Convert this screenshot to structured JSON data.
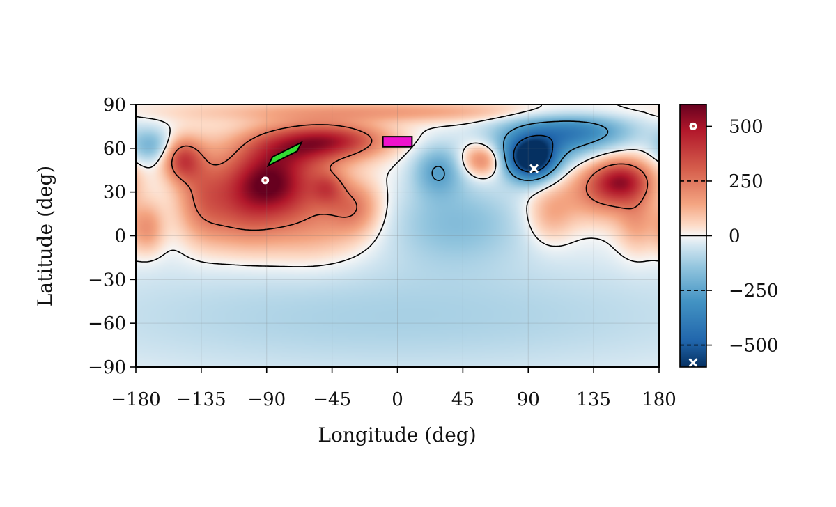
{
  "chart_data": {
    "type": "heatmap",
    "title": "",
    "xlabel": "Longitude (deg)",
    "ylabel": "Latitude (deg)",
    "xlim": [
      -180,
      180
    ],
    "ylim": [
      -90,
      90
    ],
    "xticks": [
      -180,
      -135,
      -90,
      -45,
      0,
      45,
      90,
      135,
      180
    ],
    "xtick_labels": [
      "−180",
      "−135",
      "−90",
      "−45",
      "0",
      "45",
      "90",
      "135",
      "180"
    ],
    "yticks": [
      90,
      60,
      30,
      0,
      -30,
      -60,
      -90
    ],
    "ytick_labels": [
      "90",
      "60",
      "30",
      "0",
      "−30",
      "−60",
      "−90"
    ],
    "grid": true,
    "colorbar": {
      "colormap": "RdBu_r",
      "range": [
        -600,
        600
      ],
      "ticks": [
        500,
        250,
        0,
        -250,
        -500
      ],
      "tick_labels": [
        "500",
        "250",
        "0",
        "−250",
        "−500"
      ],
      "contour_levels": [
        250,
        0,
        -250,
        -500
      ],
      "max_color": "#67001f",
      "min_color": "#053061"
    },
    "field_blobs": [
      {
        "lon": -88,
        "lat": 38,
        "value": 520,
        "spread": [
          22,
          16
        ]
      },
      {
        "lon": -65,
        "lat": 62,
        "value": 330,
        "spread": [
          28,
          10
        ]
      },
      {
        "lon": -40,
        "lat": 66,
        "value": 260,
        "spread": [
          25,
          8
        ]
      },
      {
        "lon": -148,
        "lat": 52,
        "value": 330,
        "spread": [
          9,
          10
        ]
      },
      {
        "lon": -135,
        "lat": 30,
        "value": 190,
        "spread": [
          12,
          22
        ]
      },
      {
        "lon": -110,
        "lat": 15,
        "value": 200,
        "spread": [
          20,
          18
        ]
      },
      {
        "lon": -60,
        "lat": 10,
        "value": 180,
        "spread": [
          30,
          20
        ]
      },
      {
        "lon": -30,
        "lat": 20,
        "value": 180,
        "spread": [
          12,
          12
        ]
      },
      {
        "lon": -48,
        "lat": 33,
        "value": 200,
        "spread": [
          8,
          8
        ]
      },
      {
        "lon": -172,
        "lat": 5,
        "value": 180,
        "spread": [
          8,
          12
        ]
      },
      {
        "lon": 155,
        "lat": 38,
        "value": 380,
        "spread": [
          14,
          10
        ]
      },
      {
        "lon": 140,
        "lat": 30,
        "value": 220,
        "spread": [
          18,
          14
        ]
      },
      {
        "lon": 58,
        "lat": 52,
        "value": 260,
        "spread": [
          10,
          8
        ]
      },
      {
        "lon": 105,
        "lat": 15,
        "value": 150,
        "spread": [
          12,
          14
        ]
      },
      {
        "lon": 165,
        "lat": 10,
        "value": 150,
        "spread": [
          10,
          16
        ]
      },
      {
        "lon": -10,
        "lat": 85,
        "value": 160,
        "spread": [
          90,
          5
        ]
      },
      {
        "lon": 92,
        "lat": 52,
        "value": -640,
        "spread": [
          12,
          10
        ]
      },
      {
        "lon": 100,
        "lat": 66,
        "value": -280,
        "spread": [
          28,
          12
        ]
      },
      {
        "lon": 130,
        "lat": 72,
        "value": -220,
        "spread": [
          25,
          8
        ]
      },
      {
        "lon": 28,
        "lat": 45,
        "value": -230,
        "spread": [
          12,
          12
        ]
      },
      {
        "lon": -170,
        "lat": 62,
        "value": -190,
        "spread": [
          10,
          8
        ]
      },
      {
        "lon": 40,
        "lat": 10,
        "value": -160,
        "spread": [
          35,
          20
        ]
      },
      {
        "lon": 0,
        "lat": -55,
        "value": -110,
        "spread": [
          180,
          30
        ]
      }
    ],
    "markers": [
      {
        "name": "maximum",
        "lon": -91,
        "lat": 38,
        "symbol": "circle-dot",
        "color": "#ffffff",
        "colorbar_value": 500
      },
      {
        "name": "minimum",
        "lon": 94,
        "lat": 46,
        "symbol": "cross",
        "color": "#ffffff",
        "colorbar_value": -580
      }
    ],
    "regions": [
      {
        "name": "green-box",
        "color": "#33dd33",
        "corners": [
          [
            -89,
            48
          ],
          [
            -86,
            54
          ],
          [
            -66,
            64
          ],
          [
            -69,
            58
          ]
        ]
      },
      {
        "name": "magenta-box",
        "color": "#ee11cc",
        "corners": [
          [
            -10,
            61
          ],
          [
            10,
            61
          ],
          [
            10,
            68
          ],
          [
            -10,
            68
          ]
        ]
      }
    ]
  }
}
